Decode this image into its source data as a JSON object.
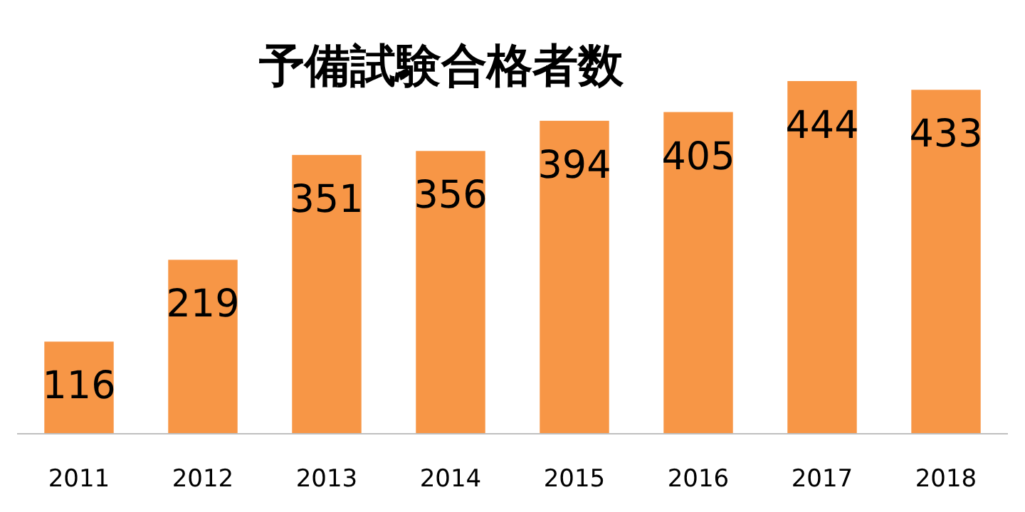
{
  "chart_data": {
    "type": "bar",
    "title": "予備試験合格者数",
    "categories": [
      "2011",
      "2012",
      "2013",
      "2014",
      "2015",
      "2016",
      "2017",
      "2018"
    ],
    "values": [
      116,
      219,
      351,
      356,
      394,
      405,
      444,
      433
    ],
    "color": "#f79646",
    "data_labels": true
  }
}
